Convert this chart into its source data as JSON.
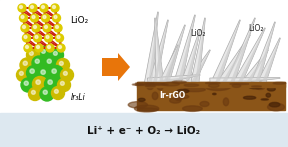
{
  "bg_color": "#dde8f0",
  "title_text": "Li⁺ + e⁻ + O₂ → LiO₂",
  "arrow_color": "#e8750a",
  "lio2_label": "LiO₂",
  "ir3li_label": "Ir₃Li",
  "ir_rgo_label": "Ir-rGO",
  "lio2_label2": "LiO₂",
  "lio2_label3": "LiO₂",
  "crystal_red": "#cc2211",
  "crystal_yellow": "#ddcc00",
  "sphere_green": "#33bb22",
  "sphere_yellow": "#ccbb00",
  "sphere_dark_yellow": "#aa9900",
  "blade_color": "#cccccc",
  "blade_light": "#e8e8e8",
  "blade_edge": "#aaaaaa",
  "rgo_brown": "#8B5518",
  "rgo_mid": "#6B3A10",
  "rgo_dark": "#4a2508",
  "white_bg": "#f0f0f0",
  "text_color": "#111111",
  "left_bg": "#c8d8e8"
}
